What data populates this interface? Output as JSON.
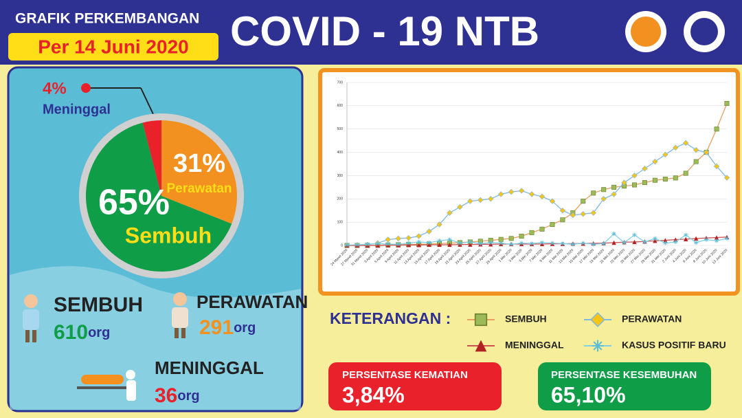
{
  "header": {
    "subtitle": "GRAFIK PERKEMBANGAN",
    "date": "Per 14 Juni 2020",
    "title": "COVID - 19 NTB"
  },
  "chart_data": [
    {
      "type": "pie",
      "categories": [
        "Perawatan",
        "Sembuh",
        "Meninggal"
      ],
      "values": [
        31,
        65,
        4
      ],
      "value_labels": [
        "31%",
        "65%",
        "4%"
      ],
      "colors": [
        "#f39120",
        "#0f9d48",
        "#e8212b"
      ]
    },
    {
      "type": "line",
      "ylim": [
        0,
        700
      ],
      "yticks": [
        0,
        100,
        200,
        300,
        400,
        500,
        600,
        700
      ],
      "grid": true,
      "categories": [
        "24 Maret 2020",
        "27 Maret 2020",
        "31 Maret 2020",
        "3 April 2020",
        "5 April 2020",
        "9 April 2020",
        "11 April 2020",
        "13 April 2020",
        "15 April 2020",
        "17 April 2020",
        "19 April 2020",
        "21 April 2020",
        "23 April 2020",
        "25 April 2020",
        "27 April 2020",
        "29 April 2020",
        "1 Mei 2020",
        "3 Mei 2020",
        "5 Mei 2020",
        "7 Mei 2020",
        "9 Mei 2020",
        "11 Mei 2020",
        "13 Mei 2020",
        "15 Mei 2020",
        "17 Mei 2020",
        "19 Mei 2020",
        "21 Mei 2020",
        "23 Mei 2020",
        "25 Mei 2020",
        "27 Mei 2020",
        "29 Mei 2020",
        "31 Mei 2020",
        "2 Juni 2020",
        "4 Juni 2020",
        "6 Juni 2020",
        "8 Juni 2020",
        "10 Juni 2020",
        "13 Juni 2020"
      ],
      "series": [
        {
          "name": "SEMBUH",
          "color": "#e8a060",
          "marker": "square",
          "marker_color": "#9bbb59",
          "values": [
            0,
            0,
            0,
            1,
            2,
            3,
            4,
            5,
            6,
            8,
            10,
            12,
            15,
            18,
            22,
            26,
            30,
            40,
            55,
            70,
            90,
            110,
            140,
            190,
            225,
            240,
            250,
            255,
            260,
            270,
            280,
            285,
            290,
            310,
            360,
            400,
            500,
            610
          ]
        },
        {
          "name": "PERAWATAN",
          "color": "#7fb8e0",
          "marker": "diamond",
          "marker_color": "#f5c518",
          "values": [
            1,
            2,
            3,
            10,
            25,
            30,
            32,
            40,
            60,
            90,
            140,
            165,
            190,
            195,
            200,
            220,
            230,
            235,
            220,
            210,
            190,
            150,
            130,
            135,
            140,
            200,
            220,
            270,
            300,
            330,
            360,
            390,
            420,
            440,
            410,
            400,
            340,
            291
          ]
        },
        {
          "name": "MENINGGAL",
          "color": "#d05050",
          "marker": "triangle",
          "marker_color": "#b22222",
          "values": [
            0,
            0,
            0,
            0,
            1,
            1,
            2,
            2,
            3,
            3,
            3,
            4,
            4,
            5,
            5,
            6,
            6,
            6,
            6,
            6,
            7,
            7,
            8,
            8,
            9,
            10,
            12,
            14,
            15,
            17,
            20,
            22,
            25,
            27,
            30,
            32,
            34,
            36
          ]
        },
        {
          "name": "KASUS POSITIF BARU",
          "color": "#7fd0e8",
          "marker": "asterisk",
          "marker_color": "#5bbcd6",
          "values": [
            2,
            3,
            5,
            8,
            6,
            5,
            10,
            15,
            12,
            20,
            25,
            10,
            15,
            8,
            12,
            10,
            5,
            10,
            8,
            12,
            10,
            8,
            5,
            10,
            5,
            8,
            50,
            12,
            45,
            15,
            30,
            10,
            15,
            45,
            12,
            25,
            20,
            30
          ]
        }
      ]
    }
  ],
  "stats": [
    {
      "label": "SEMBUH",
      "number": 610,
      "unit": "org"
    },
    {
      "label": "PERAWATAN",
      "number": 291,
      "unit": "org"
    },
    {
      "label": "MENINGGAL",
      "number": 36,
      "unit": "org"
    }
  ],
  "legend_title": "KETERANGAN :",
  "percentages": [
    {
      "label": "PERSENTASE KEMATIAN",
      "value": "3,84%"
    },
    {
      "label": "PERSENTASE KESEMBUHAN",
      "value": "65,10%"
    }
  ]
}
